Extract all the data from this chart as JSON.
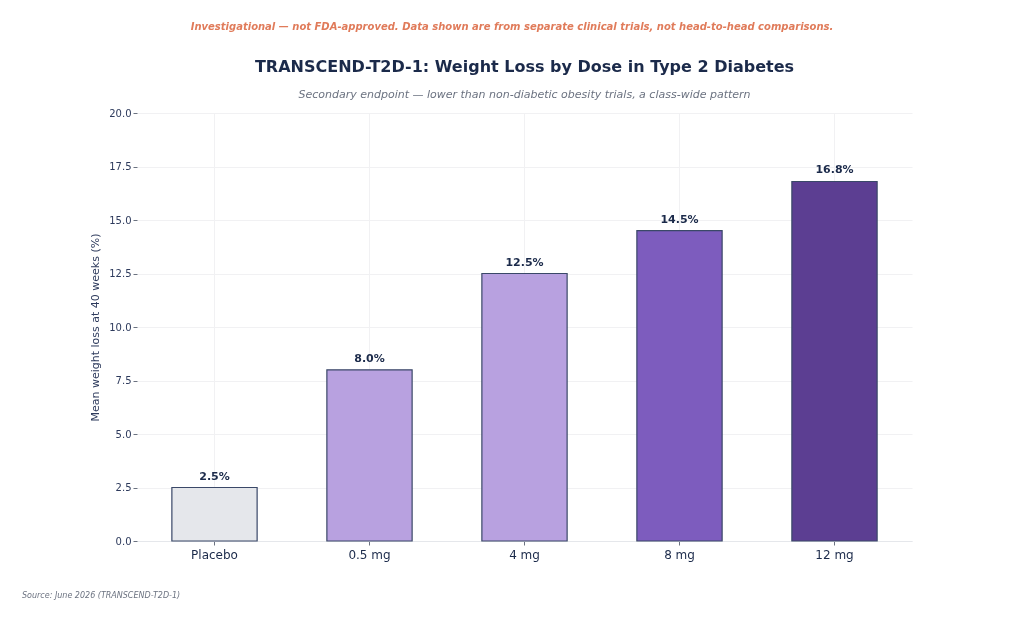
{
  "chart_data": {
    "type": "bar",
    "title": "TRANSCEND-T2D-1: Weight Loss by Dose in Type 2 Diabetes",
    "subtitle": "Secondary endpoint — lower than non-diabetic obesity trials, a class-wide pattern",
    "ylabel": "Mean weight loss at 40 weeks (%)",
    "annotations": [
      "Investigational — not FDA-approved. Data shown are from separate clinical trials, not head-to-head comparisons.",
      "Source: June 2026 (TRANSCEND-T2D-1)"
    ],
    "categories": [
      "Placebo",
      "0.5 mg",
      "4 mg",
      "8 mg",
      "12 mg"
    ],
    "values": [
      2.5,
      8.0,
      12.5,
      14.5,
      16.8
    ],
    "value_labels": [
      "2.5%",
      "8.0%",
      "12.5%",
      "14.5%",
      "16.8%"
    ],
    "colors": [
      "#e5e7eb",
      "#b8a1e0",
      "#b8a1e0",
      "#7d5cbe",
      "#5c3e92"
    ],
    "ylim": [
      0,
      20
    ],
    "yticks": [
      {
        "value": 0,
        "label": "0.0"
      },
      2.5,
      {
        "value": 5,
        "label": "5.0"
      },
      7.5,
      {
        "value": 10,
        "label": "10.0"
      },
      12.5,
      {
        "value": 15,
        "label": "15.0"
      },
      17.5,
      {
        "value": 20,
        "label": "20.0"
      }
    ],
    "grid": true
  }
}
